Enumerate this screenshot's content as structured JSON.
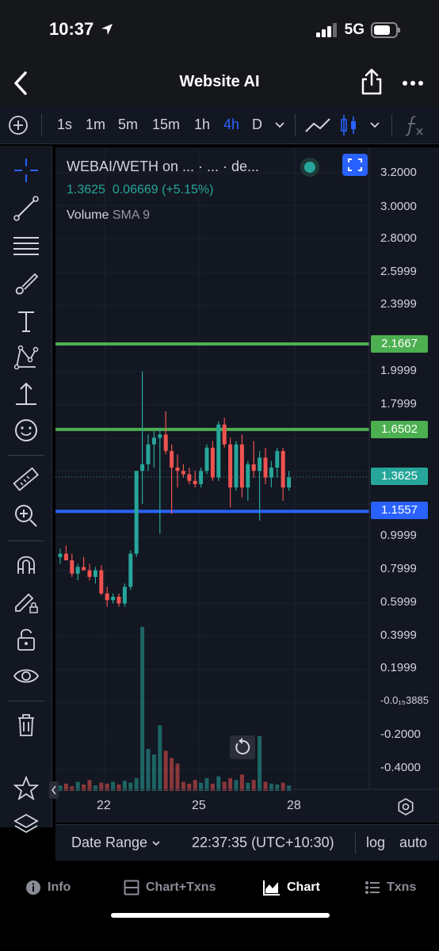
{
  "status_bar": {
    "time": "10:37",
    "network": "5G"
  },
  "nav": {
    "title": "Website AI"
  },
  "timeframes": [
    {
      "label": "1s",
      "active": false
    },
    {
      "label": "1m",
      "active": false
    },
    {
      "label": "5m",
      "active": false
    },
    {
      "label": "15m",
      "active": false
    },
    {
      "label": "1h",
      "active": false
    },
    {
      "label": "4h",
      "active": true
    },
    {
      "label": "D",
      "active": false
    }
  ],
  "legend": {
    "pair": "WEBAI/WETH on ... · ... · de...",
    "price": "1.3625",
    "change": "0.06669 (+5.15%)",
    "volume_label": "Volume",
    "sma_label": "SMA 9"
  },
  "price_axis": {
    "labels": [
      "3.2000",
      "3.0000",
      "2.8000",
      "2.5999",
      "2.3999",
      "1.9999",
      "1.7999",
      "0.9999",
      "0.7999",
      "0.5999",
      "0.3999",
      "0.1999",
      "-0.0₁₅3885",
      "-0.2000",
      "-0.4000"
    ]
  },
  "horizontal_lines": [
    {
      "price": "2.1667",
      "color": "#4caf50"
    },
    {
      "price": "1.6502",
      "color": "#4caf50"
    },
    {
      "price": "1.1557",
      "color": "#2962ff"
    }
  ],
  "current_price_tag": {
    "price": "1.3625",
    "color": "#26a69a"
  },
  "x_axis": {
    "labels": [
      "22",
      "25",
      "28"
    ]
  },
  "bottom_controls": {
    "date_range": "Date Range",
    "time": "22:37:35 (UTC+10:30)",
    "log": "log",
    "auto": "auto"
  },
  "tabs": [
    {
      "label": "Info",
      "icon": "info-icon",
      "active": false
    },
    {
      "label": "Chart+Txns",
      "icon": "split-view-icon",
      "active": false
    },
    {
      "label": "Chart",
      "icon": "chart-icon",
      "active": true
    },
    {
      "label": "Txns",
      "icon": "list-icon",
      "active": false
    }
  ],
  "chart_data": {
    "type": "candlestick",
    "x_ticks": [
      "22",
      "25",
      "28"
    ],
    "y_range": [
      -0.5,
      3.3
    ],
    "last_price": 1.3625,
    "candles": [
      {
        "o": 0.88,
        "h": 0.93,
        "l": 0.84,
        "c": 0.9
      },
      {
        "o": 0.9,
        "h": 0.95,
        "l": 0.86,
        "c": 0.86
      },
      {
        "o": 0.86,
        "h": 0.9,
        "l": 0.76,
        "c": 0.78
      },
      {
        "o": 0.78,
        "h": 0.84,
        "l": 0.74,
        "c": 0.82
      },
      {
        "o": 0.82,
        "h": 0.88,
        "l": 0.8,
        "c": 0.8
      },
      {
        "o": 0.8,
        "h": 0.84,
        "l": 0.74,
        "c": 0.76
      },
      {
        "o": 0.76,
        "h": 0.82,
        "l": 0.72,
        "c": 0.8
      },
      {
        "o": 0.8,
        "h": 0.83,
        "l": 0.65,
        "c": 0.66
      },
      {
        "o": 0.66,
        "h": 0.7,
        "l": 0.58,
        "c": 0.62
      },
      {
        "o": 0.62,
        "h": 0.66,
        "l": 0.6,
        "c": 0.64
      },
      {
        "o": 0.64,
        "h": 0.66,
        "l": 0.58,
        "c": 0.6
      },
      {
        "o": 0.6,
        "h": 0.72,
        "l": 0.58,
        "c": 0.7
      },
      {
        "o": 0.7,
        "h": 0.92,
        "l": 0.68,
        "c": 0.9
      },
      {
        "o": 0.9,
        "h": 1.4,
        "l": 0.88,
        "c": 1.4
      },
      {
        "o": 1.4,
        "h": 2.0,
        "l": 1.2,
        "c": 1.44
      },
      {
        "o": 1.44,
        "h": 1.62,
        "l": 1.4,
        "c": 1.56
      },
      {
        "o": 1.56,
        "h": 1.64,
        "l": 1.42,
        "c": 1.6
      },
      {
        "o": 1.6,
        "h": 1.66,
        "l": 1.02,
        "c": 1.62
      },
      {
        "o": 1.62,
        "h": 1.76,
        "l": 1.5,
        "c": 1.52
      },
      {
        "o": 1.52,
        "h": 1.56,
        "l": 1.14,
        "c": 1.42
      },
      {
        "o": 1.42,
        "h": 1.5,
        "l": 1.3,
        "c": 1.4
      },
      {
        "o": 1.4,
        "h": 1.44,
        "l": 1.36,
        "c": 1.38
      },
      {
        "o": 1.38,
        "h": 1.42,
        "l": 1.32,
        "c": 1.34
      },
      {
        "o": 1.34,
        "h": 1.4,
        "l": 1.3,
        "c": 1.32
      },
      {
        "o": 1.32,
        "h": 1.42,
        "l": 1.3,
        "c": 1.4
      },
      {
        "o": 1.4,
        "h": 1.56,
        "l": 1.38,
        "c": 1.54
      },
      {
        "o": 1.54,
        "h": 1.58,
        "l": 1.34,
        "c": 1.36
      },
      {
        "o": 1.36,
        "h": 1.7,
        "l": 1.34,
        "c": 1.68
      },
      {
        "o": 1.68,
        "h": 1.72,
        "l": 1.54,
        "c": 1.56
      },
      {
        "o": 1.56,
        "h": 1.6,
        "l": 1.18,
        "c": 1.3
      },
      {
        "o": 1.3,
        "h": 1.58,
        "l": 1.28,
        "c": 1.56
      },
      {
        "o": 1.56,
        "h": 1.62,
        "l": 1.24,
        "c": 1.3
      },
      {
        "o": 1.3,
        "h": 1.46,
        "l": 1.22,
        "c": 1.44
      },
      {
        "o": 1.44,
        "h": 1.58,
        "l": 1.36,
        "c": 1.4
      },
      {
        "o": 1.4,
        "h": 1.52,
        "l": 1.1,
        "c": 1.48
      },
      {
        "o": 1.48,
        "h": 1.54,
        "l": 1.32,
        "c": 1.36
      },
      {
        "o": 1.36,
        "h": 1.46,
        "l": 1.3,
        "c": 1.42
      },
      {
        "o": 1.42,
        "h": 1.54,
        "l": 1.36,
        "c": 1.52
      },
      {
        "o": 1.52,
        "h": 1.54,
        "l": 1.22,
        "c": 1.3
      },
      {
        "o": 1.3,
        "h": 1.4,
        "l": 1.28,
        "c": 1.36
      }
    ],
    "volume": [
      6,
      8,
      5,
      10,
      7,
      12,
      6,
      9,
      8,
      10,
      7,
      11,
      9,
      14,
      180,
      46,
      40,
      72,
      44,
      36,
      30,
      10,
      8,
      12,
      9,
      14,
      8,
      16,
      10,
      14,
      12,
      18,
      9,
      12,
      60,
      10,
      8,
      7,
      9,
      6
    ]
  }
}
